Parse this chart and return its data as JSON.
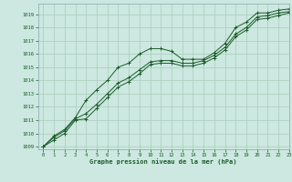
{
  "title": "Graphe pression niveau de la mer (hPa)",
  "background_color": "#cce8e0",
  "grid_color": "#aaccbb",
  "line_color": "#1a5c2a",
  "xlim": [
    -0.5,
    23
  ],
  "ylim": [
    1008.8,
    1019.8
  ],
  "xticks": [
    0,
    1,
    2,
    3,
    4,
    5,
    6,
    7,
    8,
    9,
    10,
    11,
    12,
    13,
    14,
    15,
    16,
    17,
    18,
    19,
    20,
    21,
    22,
    23
  ],
  "yticks": [
    1009,
    1010,
    1011,
    1012,
    1013,
    1014,
    1015,
    1016,
    1017,
    1018,
    1019
  ],
  "series": [
    [
      1009.0,
      1009.8,
      1010.3,
      1011.2,
      1012.5,
      1013.3,
      1014.0,
      1015.0,
      1015.3,
      1016.0,
      1016.4,
      1016.4,
      1016.2,
      1015.6,
      1015.6,
      1015.6,
      1016.1,
      1016.8,
      1018.0,
      1018.4,
      1019.1,
      1019.1,
      1019.3,
      1019.4
    ],
    [
      1009.0,
      1009.7,
      1010.2,
      1011.1,
      1011.5,
      1012.2,
      1013.0,
      1013.8,
      1014.2,
      1014.8,
      1015.4,
      1015.5,
      1015.5,
      1015.3,
      1015.3,
      1015.5,
      1015.9,
      1016.5,
      1017.5,
      1018.0,
      1018.8,
      1018.9,
      1019.1,
      1019.2
    ],
    [
      1009.0,
      1009.5,
      1010.0,
      1011.0,
      1011.1,
      1011.9,
      1012.7,
      1013.5,
      1013.9,
      1014.5,
      1015.2,
      1015.3,
      1015.3,
      1015.1,
      1015.1,
      1015.3,
      1015.7,
      1016.3,
      1017.3,
      1017.8,
      1018.6,
      1018.7,
      1018.9,
      1019.1
    ]
  ]
}
